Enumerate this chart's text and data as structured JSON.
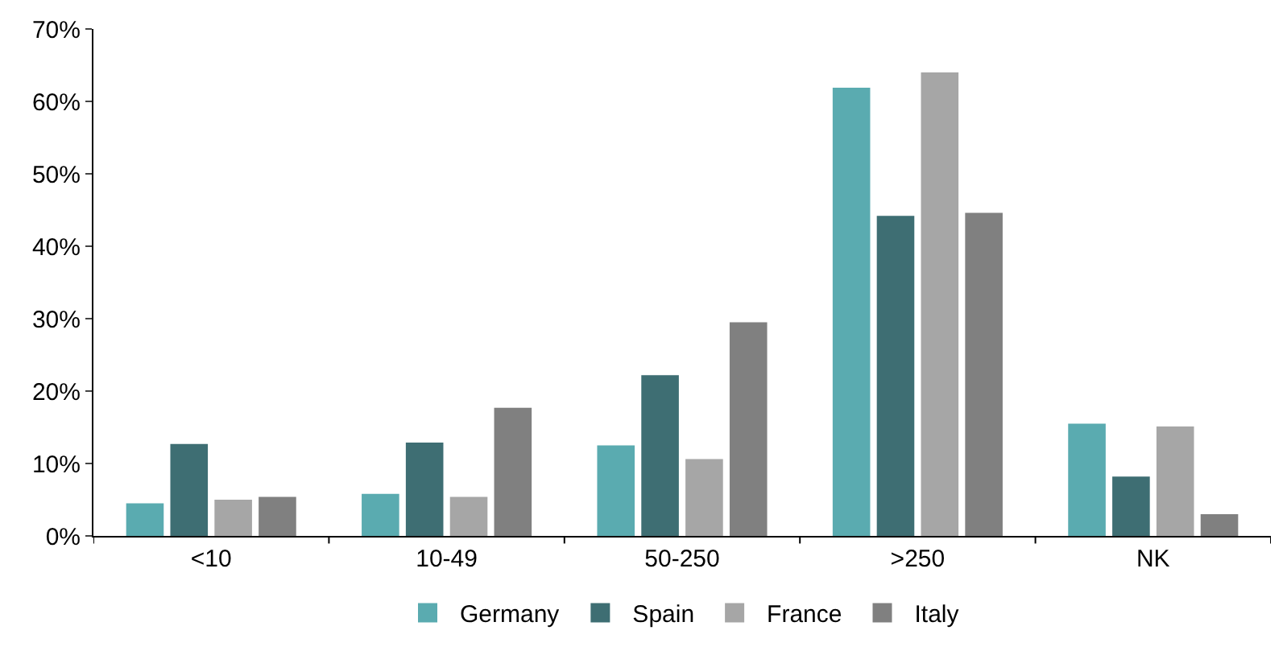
{
  "chart_data": {
    "type": "bar",
    "categories": [
      "<10",
      "10-49",
      "50-250",
      ">250",
      "NK"
    ],
    "series": [
      {
        "name": "Germany",
        "color": "#5aabb0",
        "values": [
          4.5,
          5.8,
          12.5,
          61.9,
          15.5
        ]
      },
      {
        "name": "Spain",
        "color": "#3e6e73",
        "values": [
          12.7,
          12.9,
          22.2,
          44.2,
          8.2
        ]
      },
      {
        "name": "France",
        "color": "#a6a6a6",
        "values": [
          5.0,
          5.4,
          10.6,
          64.0,
          15.1
        ]
      },
      {
        "name": "Italy",
        "color": "#808080",
        "values": [
          5.4,
          17.7,
          29.5,
          44.6,
          3.0
        ]
      }
    ],
    "ylim": [
      0,
      70
    ],
    "yticks": [
      {
        "value": 0,
        "label": "0%"
      },
      {
        "value": 10,
        "label": "10%"
      },
      {
        "value": 20,
        "label": "20%"
      },
      {
        "value": 30,
        "label": "30%"
      },
      {
        "value": 40,
        "label": "40%"
      },
      {
        "value": 50,
        "label": "50%"
      },
      {
        "value": 60,
        "label": "60%"
      },
      {
        "value": 70,
        "label": "70%"
      }
    ],
    "legend": "bottom"
  }
}
